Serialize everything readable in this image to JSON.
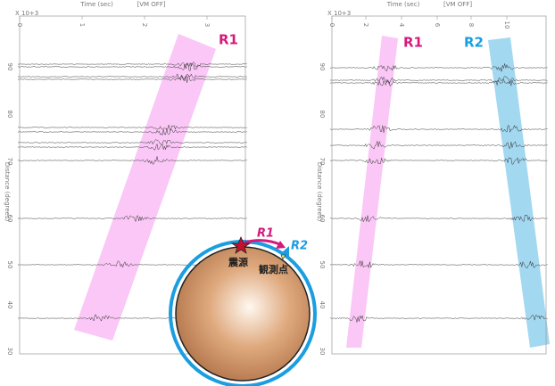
{
  "left_panel": {
    "x_axis_title": "Time (sec)",
    "mode": "[VM OFF]",
    "multiplier": "X 10+3",
    "x_ticks": [
      "0",
      "1",
      "2",
      "3"
    ],
    "y_axis_title": "Distance (degrees)",
    "y_ticks": [
      "90",
      "80",
      "70",
      "60",
      "50",
      "40",
      "30"
    ],
    "wave_labels": [
      "R1"
    ]
  },
  "right_panel": {
    "x_axis_title": "Time (sec)",
    "mode": "[VM OFF]",
    "multiplier": "X 10+3",
    "x_ticks": [
      "0",
      "2",
      "4",
      "6",
      "8",
      "10"
    ],
    "y_axis_title": "Distance (degrees)",
    "y_ticks": [
      "90",
      "80",
      "70",
      "60",
      "50",
      "40",
      "30"
    ],
    "wave_labels": [
      "R1",
      "R2"
    ]
  },
  "inset": {
    "wave_labels": [
      "R1",
      "R2"
    ],
    "source": "震源",
    "station": "観測点"
  }
}
